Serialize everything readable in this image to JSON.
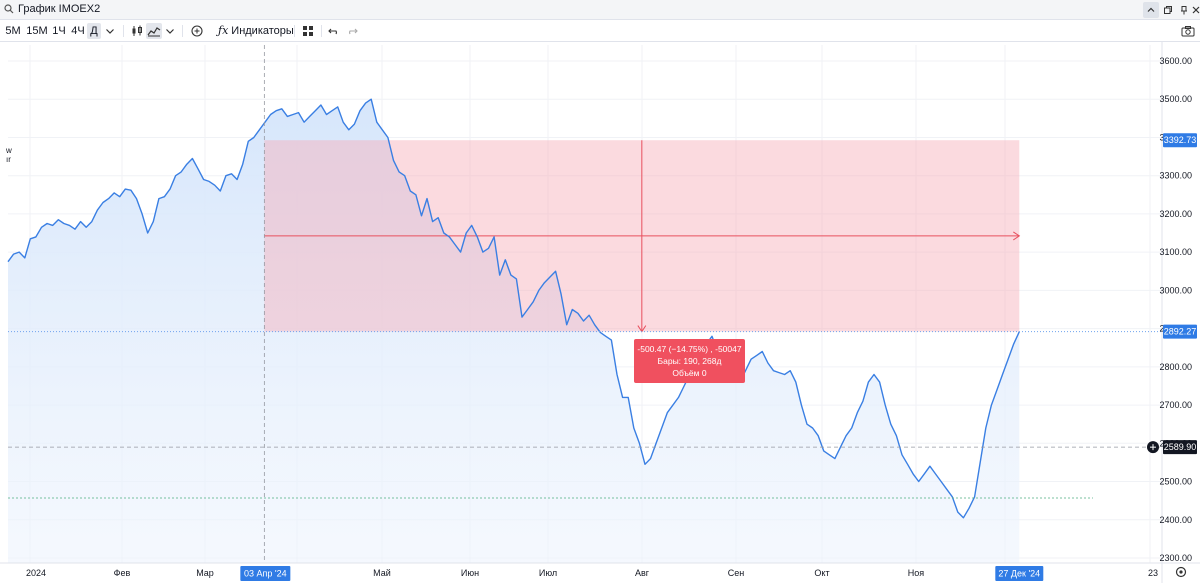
{
  "window": {
    "title": "График IMOEX2"
  },
  "toolbar": {
    "intervals": [
      "5M",
      "15M",
      "1Ч",
      "4Ч",
      "Д"
    ],
    "selected_interval": "Д",
    "indicators_label": "Индикаторы"
  },
  "chart": {
    "price_axis": [
      "3600.00",
      "3500.00",
      "3400.00",
      "3300.00",
      "3200.00",
      "3100.00",
      "3000.00",
      "2900.00",
      "2800.00",
      "2700.00",
      "2600.00",
      "2500.00",
      "2400.00",
      "2300.00"
    ],
    "time_axis": [
      "2024",
      "Фев",
      "Мар",
      "Май",
      "Июн",
      "Июл",
      "Авг",
      "Сен",
      "Окт",
      "Ноя",
      "Дек",
      "23"
    ],
    "labels": {
      "top": "3392.73",
      "current": "2892.27",
      "crosshair": "2589.90",
      "date_start": "03 Апр '24",
      "date_end": "27 Дек '24"
    },
    "tooltip": {
      "line1": "-500.47 (−14.75%) , -50047",
      "line2": "Бары: 190, 268д",
      "line3": "Объём 0"
    },
    "left_fragments": [
      "w",
      "ır"
    ],
    "colors": {
      "line": "#3a7fe3",
      "area": "#d6e6fb",
      "range_red": "#f6aeb7",
      "tip": "#f0505f",
      "label_blue": "#2f7be5"
    }
  },
  "chart_data": {
    "type": "area",
    "title": "IMOEX2",
    "xlabel": "",
    "ylabel": "",
    "ylim": [
      2300,
      3650
    ],
    "x_range": [
      "2024-01-03",
      "2024-12-27"
    ],
    "y_ticks": [
      3600,
      3500,
      3400,
      3300,
      3200,
      3100,
      3000,
      2900,
      2800,
      2700,
      2600,
      2500,
      2400,
      2300
    ],
    "series": [
      {
        "values": [
          3075,
          3095,
          3100,
          3085,
          3135,
          3140,
          3165,
          3175,
          3170,
          3185,
          3175,
          3170,
          3160,
          3180,
          3165,
          3180,
          3210,
          3230,
          3240,
          3255,
          3245,
          3265,
          3262,
          3240,
          3200,
          3150,
          3180,
          3240,
          3245,
          3265,
          3300,
          3310,
          3330,
          3345,
          3318,
          3290,
          3285,
          3275,
          3260,
          3300,
          3305,
          3290,
          3330,
          3390,
          3400,
          3420,
          3440,
          3460,
          3470,
          3475,
          3455,
          3460,
          3465,
          3440,
          3455,
          3470,
          3485,
          3460,
          3470,
          3480,
          3440,
          3420,
          3435,
          3470,
          3490,
          3500,
          3440,
          3420,
          3400,
          3340,
          3310,
          3300,
          3260,
          3250,
          3195,
          3240,
          3180,
          3190,
          3150,
          3140,
          3120,
          3100,
          3150,
          3170,
          3140,
          3100,
          3110,
          3140,
          3040,
          3080,
          3040,
          3030,
          2930,
          2950,
          2970,
          3000,
          3020,
          3035,
          3050,
          2990,
          2910,
          2950,
          2940,
          2920,
          2935,
          2910,
          2890,
          2880,
          2870,
          2780,
          2720,
          2720,
          2640,
          2600,
          2545,
          2560,
          2600,
          2640,
          2680,
          2700,
          2720,
          2750,
          2780,
          2800,
          2840,
          2860,
          2880,
          2840,
          2870,
          2810,
          2800,
          2760,
          2790,
          2820,
          2830,
          2840,
          2810,
          2790,
          2785,
          2780,
          2790,
          2760,
          2700,
          2650,
          2640,
          2620,
          2580,
          2570,
          2560,
          2590,
          2620,
          2640,
          2680,
          2710,
          2760,
          2780,
          2760,
          2700,
          2650,
          2620,
          2570,
          2545,
          2520,
          2500,
          2520,
          2540,
          2520,
          2500,
          2480,
          2460,
          2420,
          2405,
          2430,
          2460,
          2550,
          2640,
          2700,
          2740,
          2780,
          2820,
          2860,
          2892
        ]
      }
    ],
    "annotations": {
      "measure_start": {
        "date": "2024-04-03",
        "price": 3392.73
      },
      "measure_end": {
        "date": "2024-12-27",
        "price": 2892.27
      },
      "change": -500.47,
      "change_pct": -14.75,
      "bars": 190,
      "days": 268,
      "volume": 0,
      "crosshair_price": 2589.9
    }
  }
}
